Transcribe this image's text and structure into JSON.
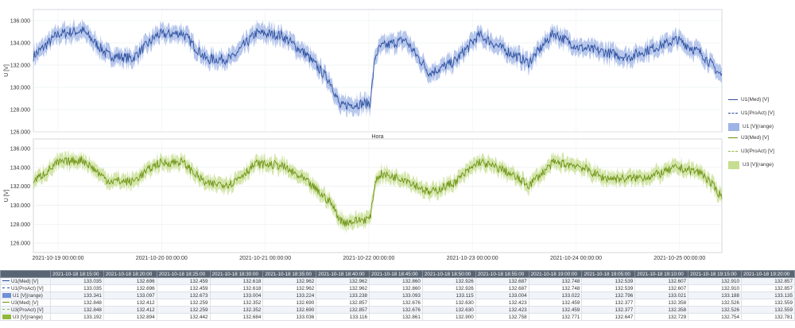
{
  "chart_data": [
    {
      "type": "line",
      "ylabel": "U [V]",
      "xlabel": "Hora",
      "ylim": [
        126.0,
        137.0
      ],
      "yticks": [
        "126.000",
        "128.000",
        "130.000",
        "132.000",
        "134.000",
        "136.000"
      ],
      "xticks": [],
      "grid": true,
      "legend": "right",
      "series": [
        {
          "name": "U1(Med) [V]",
          "color": "#2c4f9e",
          "style": "solid"
        },
        {
          "name": "U1(ProAct) [V]",
          "color": "#2c4f9e",
          "style": "dashed"
        },
        {
          "name": "U1 [V](range)",
          "color": "#9fb4e6",
          "style": "band"
        }
      ],
      "x": [
        0.0,
        0.25,
        0.5,
        0.75,
        1.0,
        1.25,
        1.5,
        1.75,
        2.0,
        2.25,
        2.5,
        2.75,
        3.0,
        3.1,
        3.15,
        3.4,
        3.45,
        3.5,
        3.75,
        4.0,
        4.25,
        4.5,
        4.75,
        5.0,
        5.25,
        5.5,
        5.75,
        6.0,
        6.25,
        6.5,
        6.75,
        6.95
      ],
      "values": [
        132.8,
        134.8,
        135.1,
        132.9,
        132.6,
        134.7,
        134.9,
        132.5,
        132.6,
        134.9,
        134.7,
        133.0,
        130.5,
        128.2,
        128.4,
        128.6,
        132.8,
        133.6,
        134.3,
        131.3,
        132.3,
        134.7,
        133.4,
        132.2,
        134.9,
        133.6,
        133.2,
        132.7,
        133.5,
        134.3,
        133.0,
        131.0
      ]
    },
    {
      "type": "line",
      "ylabel": "U [V]",
      "ylim": [
        125.0,
        137.0
      ],
      "yticks": [
        "126.000",
        "128.000",
        "130.000",
        "132.000",
        "134.000",
        "136.000"
      ],
      "xticks": [
        "2021-10-19 00:00:00",
        "2021-10-20 00:00:00",
        "2021-10-21 00:00:00",
        "2021-10-22 00:00:00",
        "2021-10-23 00:00:00",
        "2021-10-24 00:00:00",
        "2021-10-25 00:00:00"
      ],
      "grid": true,
      "legend": "right",
      "series": [
        {
          "name": "U3(Med) [V]",
          "color": "#6b8f12",
          "style": "solid"
        },
        {
          "name": "U3(ProAct) [V]",
          "color": "#8fb83a",
          "style": "dashed"
        },
        {
          "name": "U3 [V](range)",
          "color": "#c6de8f",
          "style": "band"
        }
      ],
      "x": [
        0.0,
        0.25,
        0.5,
        0.75,
        1.0,
        1.25,
        1.5,
        1.75,
        2.0,
        2.25,
        2.5,
        2.75,
        3.0,
        3.1,
        3.15,
        3.4,
        3.45,
        3.5,
        3.75,
        4.0,
        4.25,
        4.5,
        4.75,
        5.0,
        5.25,
        5.5,
        5.75,
        6.0,
        6.25,
        6.5,
        6.75,
        6.95
      ],
      "values": [
        132.5,
        134.5,
        134.8,
        132.6,
        132.5,
        134.4,
        134.6,
        132.2,
        132.3,
        134.4,
        134.2,
        132.6,
        130.3,
        128.4,
        128.2,
        128.6,
        132.5,
        133.3,
        132.8,
        131.3,
        132.4,
        134.6,
        133.7,
        132.1,
        134.5,
        134.2,
        132.9,
        132.8,
        133.1,
        134.0,
        133.4,
        130.9
      ]
    }
  ],
  "table": {
    "columns": [
      "2021-10-18 18:15:00",
      "2021-10-18 18:20:00",
      "2021-10-18 18:25:00",
      "2021-10-18 18:30:00",
      "2021-10-18 18:35:00",
      "2021-10-18 18:40:00",
      "2021-10-18 18:45:00",
      "2021-10-18 18:50:00",
      "2021-10-18 18:55:00",
      "2021-10-18 19:00:00",
      "2021-10-18 19:05:00",
      "2021-10-18 19:10:00",
      "2021-10-18 19:15:00",
      "2021-10-18 19:20:00"
    ],
    "rows": [
      {
        "label": "U1(Med) [V]",
        "color": "#2c4f9e",
        "sym": "line",
        "values": [
          "133.035",
          "132.696",
          "132.459",
          "132.618",
          "132.962",
          "132.962",
          "132.860",
          "132.926",
          "132.687",
          "132.748",
          "132.539",
          "132.607",
          "132.910",
          "132.857"
        ]
      },
      {
        "label": "U1(ProAct) [V]",
        "color": "#2c4f9e",
        "sym": "dash",
        "values": [
          "133.035",
          "132.696",
          "132.459",
          "132.618",
          "132.962",
          "132.962",
          "132.860",
          "132.926",
          "132.687",
          "132.748",
          "132.539",
          "132.607",
          "132.910",
          "132.857"
        ]
      },
      {
        "label": "U1 [V](range)",
        "color": "#6f8fd6",
        "sym": "box",
        "values": [
          "133.341",
          "133.097",
          "132.673",
          "133.004",
          "133.224",
          "133.238",
          "133.093",
          "133.115",
          "133.004",
          "133.022",
          "132.796",
          "133.021",
          "133.188",
          "133.135"
        ]
      },
      {
        "label": "U3(Med) [V]",
        "color": "#6b8f12",
        "sym": "line",
        "values": [
          "132.848",
          "132.412",
          "132.259",
          "132.352",
          "132.690",
          "132.857",
          "132.676",
          "132.630",
          "132.423",
          "132.459",
          "132.377",
          "132.358",
          "132.526",
          "132.559"
        ]
      },
      {
        "label": "U3(ProAct) [V]",
        "color": "#8fb83a",
        "sym": "dash",
        "values": [
          "132.848",
          "132.412",
          "132.259",
          "132.352",
          "132.690",
          "132.857",
          "132.676",
          "132.630",
          "132.423",
          "132.459",
          "132.377",
          "132.358",
          "132.526",
          "132.559"
        ]
      },
      {
        "label": "U3 [V](range)",
        "color": "#8fb83a",
        "sym": "box",
        "values": [
          "133.192",
          "132.894",
          "132.442",
          "132.684",
          "133.036",
          "133.116",
          "132.861",
          "132.900",
          "132.758",
          "132.771",
          "132.647",
          "132.729",
          "132.754",
          "132.781"
        ]
      }
    ]
  }
}
